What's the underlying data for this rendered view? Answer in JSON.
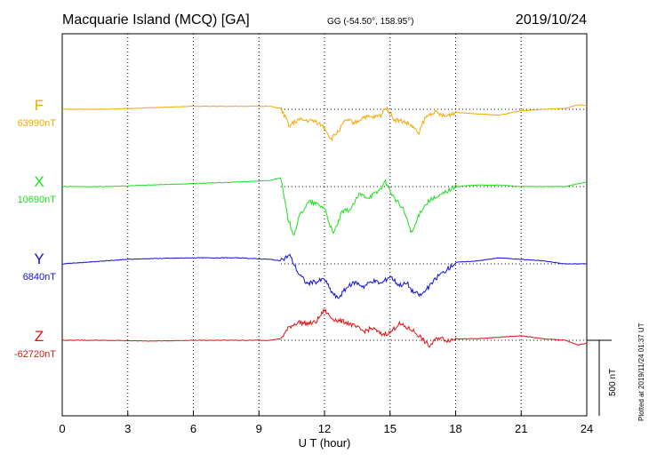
{
  "header": {
    "station": "Macquarie Island (MCQ)  [GA]",
    "coords": "GG (-54.50°, 158.95°)",
    "date": "2019/10/24"
  },
  "plotted_note": "Plotted at 2019/11/24 01:37 UT",
  "scale_label": "500 nT",
  "colors": {
    "F": "#f2a900",
    "X": "#1be01b",
    "Y": "#1010d0",
    "Z": "#e01010",
    "grid": "#000000"
  },
  "chart_data": {
    "type": "line",
    "xlabel": "U T (hour)",
    "xlim": [
      0,
      24
    ],
    "xticks": [
      0,
      3,
      6,
      9,
      12,
      15,
      18,
      21,
      24
    ],
    "tick_labels": [
      "0",
      "3",
      "6",
      "9",
      "12",
      "15",
      "18",
      "21",
      "24"
    ],
    "units": "nT",
    "scale_bar_nT": 500,
    "grid": true,
    "series": [
      {
        "name": "F",
        "baseline_label": "63990nT",
        "baseline": 63990,
        "x": [
          0,
          2,
          4,
          6,
          8,
          9.5,
          10,
          10.4,
          10.8,
          11.2,
          11.6,
          12.0,
          12.3,
          12.6,
          13.0,
          13.4,
          13.8,
          14.2,
          14.6,
          14.8,
          15.2,
          15.6,
          16.0,
          16.3,
          16.6,
          17.0,
          17.5,
          18.0,
          19.0,
          20.0,
          21.0,
          22.0,
          23.0,
          23.6,
          24
        ],
        "values": [
          0,
          0,
          10,
          20,
          20,
          20,
          5,
          -110,
          -70,
          -75,
          -80,
          -120,
          -200,
          -150,
          -70,
          -90,
          -50,
          -55,
          -40,
          20,
          -70,
          -80,
          -110,
          -160,
          -60,
          -15,
          -50,
          -20,
          -30,
          -40,
          -10,
          0,
          5,
          30,
          25
        ]
      },
      {
        "name": "X",
        "baseline_label": "10690nT",
        "baseline": 10690,
        "x": [
          0,
          2,
          4,
          6,
          8,
          9.5,
          10,
          10.3,
          10.6,
          10.9,
          11.3,
          11.7,
          12.0,
          12.4,
          12.8,
          13.2,
          13.6,
          14.0,
          14.4,
          14.8,
          15.2,
          15.6,
          16.0,
          16.4,
          16.8,
          17.2,
          17.6,
          18.0,
          19.0,
          20.0,
          21.0,
          22.0,
          23.0,
          24
        ],
        "values": [
          0,
          0,
          10,
          20,
          30,
          40,
          60,
          -200,
          -320,
          -180,
          -100,
          -120,
          -140,
          -320,
          -170,
          -150,
          -50,
          -70,
          -40,
          30,
          -80,
          -150,
          -310,
          -160,
          -90,
          -70,
          -30,
          0,
          10,
          10,
          0,
          0,
          0,
          30
        ]
      },
      {
        "name": "Y",
        "baseline_label": "6840nT",
        "baseline": 6840,
        "x": [
          0,
          1,
          2,
          3,
          4,
          6,
          8,
          9.5,
          10.0,
          10.4,
          10.8,
          11.2,
          11.6,
          12.0,
          12.3,
          12.6,
          13.0,
          13.4,
          13.8,
          14.2,
          14.6,
          15.0,
          15.4,
          15.8,
          16.0,
          16.4,
          16.8,
          17.2,
          17.6,
          18.0,
          19.0,
          20.0,
          21.0,
          22.0,
          23.0,
          24
        ],
        "values": [
          0,
          10,
          20,
          30,
          35,
          40,
          40,
          30,
          20,
          60,
          -60,
          -130,
          -120,
          -100,
          -180,
          -230,
          -160,
          -120,
          -150,
          -110,
          -130,
          -80,
          -140,
          -130,
          -180,
          -210,
          -150,
          -80,
          -40,
          10,
          20,
          40,
          30,
          20,
          0,
          0
        ]
      },
      {
        "name": "Z",
        "baseline_label": "-62720nT",
        "baseline": -62720,
        "x": [
          0,
          2,
          4,
          6,
          8,
          9.5,
          10,
          10.4,
          10.8,
          11.2,
          11.6,
          12.0,
          12.3,
          12.6,
          13.0,
          13.4,
          13.8,
          14.2,
          14.6,
          15.0,
          15.4,
          15.8,
          16.0,
          16.4,
          16.8,
          17.2,
          17.6,
          18.0,
          19.0,
          20.0,
          21.0,
          22.0,
          23.0,
          23.6,
          24
        ],
        "values": [
          0,
          0,
          -5,
          0,
          0,
          0,
          10,
          90,
          120,
          110,
          120,
          200,
          150,
          130,
          120,
          90,
          60,
          80,
          40,
          50,
          110,
          80,
          70,
          20,
          -40,
          20,
          0,
          10,
          10,
          20,
          30,
          10,
          0,
          -30,
          -20
        ]
      }
    ]
  }
}
